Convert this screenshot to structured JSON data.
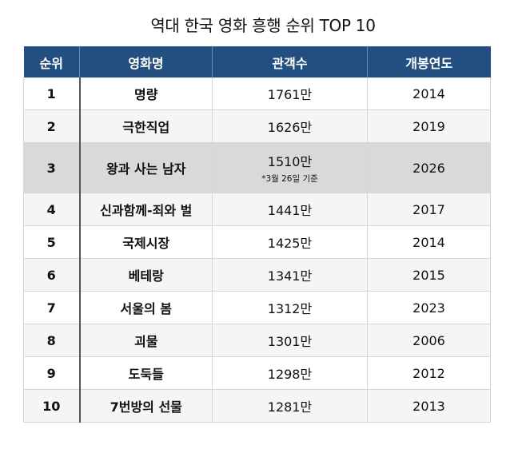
{
  "title": "역대 한국 영화 흥행 순위 TOP 10",
  "table": {
    "headers": [
      "순위",
      "영화명",
      "관객수",
      "개봉연도"
    ],
    "header_color": "#234f80",
    "highlight_color": "#d9d9d9",
    "rows": [
      {
        "rank": "1",
        "title": "명량",
        "audience": "1761만",
        "note": "",
        "year": "2014"
      },
      {
        "rank": "2",
        "title": "극한직업",
        "audience": "1626만",
        "note": "",
        "year": "2019"
      },
      {
        "rank": "3",
        "title": "왕과 사는 남자",
        "audience": "1510만",
        "note": "*3월 26일 기준",
        "year": "2026"
      },
      {
        "rank": "4",
        "title": "신과함께-죄와 벌",
        "audience": "1441만",
        "note": "",
        "year": "2017"
      },
      {
        "rank": "5",
        "title": "국제시장",
        "audience": "1425만",
        "note": "",
        "year": "2014"
      },
      {
        "rank": "6",
        "title": "베테랑",
        "audience": "1341만",
        "note": "",
        "year": "2015"
      },
      {
        "rank": "7",
        "title": "서울의 봄",
        "audience": "1312만",
        "note": "",
        "year": "2023"
      },
      {
        "rank": "8",
        "title": "괴물",
        "audience": "1301만",
        "note": "",
        "year": "2006"
      },
      {
        "rank": "9",
        "title": "도둑들",
        "audience": "1298만",
        "note": "",
        "year": "2012"
      },
      {
        "rank": "10",
        "title": "7번방의 선물",
        "audience": "1281만",
        "note": "",
        "year": "2013"
      }
    ]
  }
}
